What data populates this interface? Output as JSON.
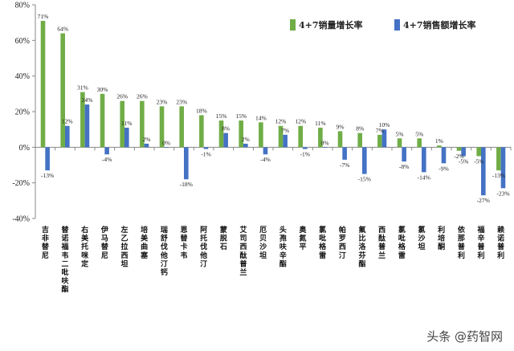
{
  "chart_data": {
    "type": "bar",
    "categories": [
      "吉非替尼",
      "替诺福韦二吡呋酯",
      "右美托咪定",
      "伊马替尼",
      "左乙拉西坦",
      "培美曲塞",
      "瑞舒伐他汀钙",
      "恩替卡韦",
      "阿托伐他汀",
      "蒙脱石",
      "艾司西酞普兰",
      "厄贝沙坦",
      "头孢呋辛酯",
      "奥氮平",
      "氯吡格雷",
      "帕罗西汀",
      "氟比洛芬酯",
      "西酞普兰",
      "氯吡格雷",
      "氯沙坦",
      "利培酮",
      "依那普利",
      "福辛普利",
      "赖诺普利"
    ],
    "series": [
      {
        "name": "4+7销量增长率",
        "color": "#70ad47",
        "values": [
          71,
          64,
          31,
          30,
          26,
          26,
          23,
          23,
          18,
          15,
          15,
          14,
          12,
          12,
          11,
          9,
          8,
          7,
          5,
          5,
          1,
          -2,
          -5,
          -13
        ],
        "labels": [
          "71%",
          "64%",
          "31%",
          "30%",
          "26%",
          "26%",
          "23%",
          "23%",
          "18%",
          "15%",
          "15%",
          "14%",
          "12%",
          "12%",
          "11%",
          "9%",
          "8%",
          "7%",
          "5%",
          "5%",
          "1%",
          "-2%",
          "-5%",
          "-13%"
        ]
      },
      {
        "name": "4+7销售额增长率",
        "color": "#4472c4",
        "values": [
          -13,
          12,
          24,
          -4,
          11,
          2,
          0,
          -18,
          -1,
          8,
          2,
          -4,
          7,
          -1,
          0,
          -7,
          -15,
          10,
          -8,
          -14,
          -9,
          -5,
          -27,
          -23
        ],
        "labels": [
          "-13%",
          "12%",
          "24%",
          "-4%",
          "11%",
          "2%",
          "0%",
          "-18%",
          "-1%",
          "8%",
          "2%",
          "-4%",
          "7%",
          "-1%",
          "0%",
          "-7%",
          "-15%",
          "10%",
          "-8%",
          "-14%",
          "-9%",
          "-5%",
          "-27%",
          "-23%"
        ]
      }
    ],
    "ylim": [
      -40,
      80
    ],
    "yticks": [
      "80%",
      "60%",
      "40%",
      "20%",
      "0%",
      "-20%",
      "-40%"
    ],
    "ytick_values": [
      80,
      60,
      40,
      20,
      0,
      -20,
      -40
    ],
    "legend_position": "top-right",
    "grid": false
  },
  "watermark": "头条 @药智网"
}
